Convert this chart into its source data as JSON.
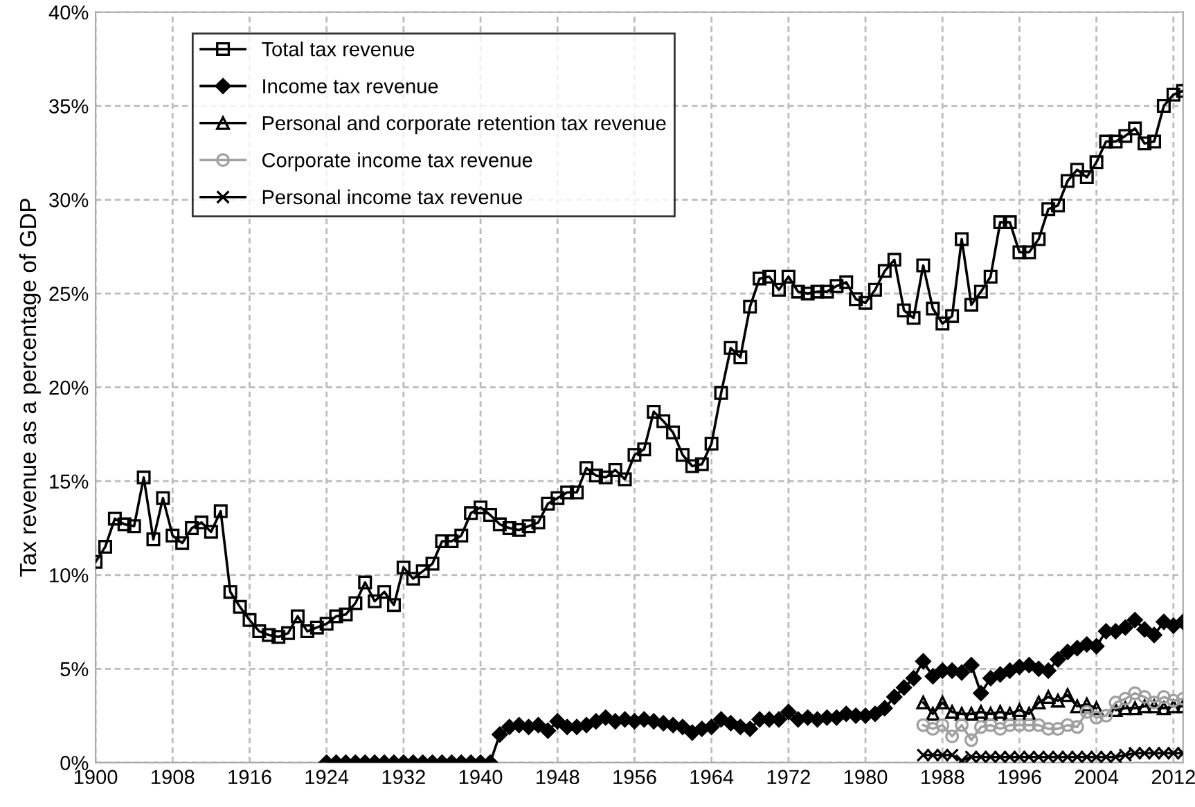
{
  "chart_data": {
    "type": "line",
    "ylabel": "Tax revenue as a percentage of GDP",
    "xlim": [
      1900,
      2013
    ],
    "xticks": [
      1900,
      1908,
      1916,
      1924,
      1932,
      1940,
      1948,
      1956,
      1964,
      1972,
      1980,
      1988,
      1996,
      2004,
      2012
    ],
    "ylim": [
      0,
      40
    ],
    "yticks": [
      {
        "value": 0,
        "label": "0%"
      },
      {
        "value": 5,
        "label": "5%"
      },
      {
        "value": 10,
        "label": "10%"
      },
      {
        "value": 15,
        "label": "15%"
      },
      {
        "value": 20,
        "label": "20%"
      },
      {
        "value": 25,
        "label": "25%"
      },
      {
        "value": 30,
        "label": "30%"
      },
      {
        "value": 35,
        "label": "35%"
      },
      {
        "value": 40,
        "label": "40%"
      }
    ],
    "grid": true,
    "legend": "top left",
    "line_style": "solid",
    "series": [
      {
        "name": "Total tax revenue",
        "color": "#000000",
        "marker": "square",
        "x": [
          1900,
          1901,
          1902,
          1903,
          1904,
          1905,
          1906,
          1907,
          1908,
          1909,
          1910,
          1911,
          1912,
          1913,
          1914,
          1915,
          1916,
          1917,
          1918,
          1919,
          1920,
          1921,
          1922,
          1923,
          1924,
          1925,
          1926,
          1927,
          1928,
          1929,
          1930,
          1931,
          1932,
          1933,
          1934,
          1935,
          1936,
          1937,
          1938,
          1939,
          1940,
          1941,
          1942,
          1943,
          1944,
          1945,
          1946,
          1947,
          1948,
          1949,
          1950,
          1951,
          1952,
          1953,
          1954,
          1955,
          1956,
          1957,
          1958,
          1959,
          1960,
          1961,
          1962,
          1963,
          1964,
          1965,
          1966,
          1967,
          1968,
          1969,
          1970,
          1971,
          1972,
          1973,
          1974,
          1975,
          1976,
          1977,
          1978,
          1979,
          1980,
          1981,
          1982,
          1983,
          1984,
          1985,
          1986,
          1987,
          1988,
          1989,
          1990,
          1991,
          1992,
          1993,
          1994,
          1995,
          1996,
          1997,
          1998,
          1999,
          2000,
          2001,
          2002,
          2003,
          2004,
          2005,
          2006,
          2007,
          2008,
          2009,
          2010,
          2011,
          2012,
          2013
        ],
        "values": [
          10.7,
          11.5,
          13.0,
          12.7,
          12.6,
          15.2,
          11.9,
          14.1,
          12.1,
          11.7,
          12.5,
          12.8,
          12.3,
          13.4,
          9.1,
          8.3,
          7.6,
          7.0,
          6.8,
          6.7,
          6.9,
          7.8,
          7.0,
          7.2,
          7.4,
          7.8,
          7.9,
          8.5,
          9.6,
          8.6,
          9.1,
          8.4,
          10.4,
          9.8,
          10.2,
          10.6,
          11.8,
          11.8,
          12.1,
          13.3,
          13.6,
          13.2,
          12.7,
          12.5,
          12.4,
          12.6,
          12.8,
          13.8,
          14.1,
          14.4,
          14.4,
          15.7,
          15.3,
          15.2,
          15.6,
          15.1,
          16.4,
          16.7,
          18.7,
          18.2,
          17.6,
          16.4,
          15.8,
          15.9,
          17.0,
          19.7,
          22.1,
          21.6,
          24.3,
          25.8,
          25.9,
          25.2,
          25.9,
          25.1,
          25.0,
          25.1,
          25.1,
          25.4,
          25.6,
          24.7,
          24.5,
          25.2,
          26.2,
          26.8,
          24.1,
          23.7,
          26.5,
          24.2,
          23.4,
          23.8,
          27.9,
          24.4,
          25.1,
          25.9,
          28.8,
          28.8,
          27.2,
          27.2,
          27.9,
          29.5,
          29.7,
          31.0,
          31.6,
          31.2,
          32.0,
          33.1,
          33.1,
          33.4,
          33.8,
          33.0,
          33.1,
          35.0,
          35.6,
          35.8
        ]
      },
      {
        "name": "Income tax revenue",
        "color": "#000000",
        "marker": "diamond",
        "x": [
          1924,
          1925,
          1926,
          1927,
          1928,
          1929,
          1930,
          1931,
          1932,
          1933,
          1934,
          1935,
          1936,
          1937,
          1938,
          1939,
          1940,
          1941,
          1942,
          1943,
          1944,
          1945,
          1946,
          1947,
          1948,
          1949,
          1950,
          1951,
          1952,
          1953,
          1954,
          1955,
          1956,
          1957,
          1958,
          1959,
          1960,
          1961,
          1962,
          1963,
          1964,
          1965,
          1966,
          1967,
          1968,
          1969,
          1970,
          1971,
          1972,
          1973,
          1974,
          1975,
          1976,
          1977,
          1978,
          1979,
          1980,
          1981,
          1982,
          1983,
          1984,
          1985,
          1986,
          1987,
          1988,
          1989,
          1990,
          1991,
          1992,
          1993,
          1994,
          1995,
          1996,
          1997,
          1998,
          1999,
          2000,
          2001,
          2002,
          2003,
          2004,
          2005,
          2006,
          2007,
          2008,
          2009,
          2010,
          2011,
          2012,
          2013
        ],
        "values": [
          0,
          0,
          0,
          0,
          0,
          0,
          0,
          0,
          0,
          0,
          0,
          0,
          0,
          0,
          0,
          0,
          0,
          0,
          1.5,
          1.9,
          2.0,
          1.9,
          2.0,
          1.7,
          2.2,
          1.9,
          1.9,
          2.0,
          2.2,
          2.4,
          2.2,
          2.3,
          2.2,
          2.3,
          2.2,
          2.1,
          2.0,
          1.9,
          1.6,
          1.8,
          1.9,
          2.3,
          2.1,
          1.9,
          1.8,
          2.3,
          2.3,
          2.3,
          2.7,
          2.3,
          2.4,
          2.3,
          2.4,
          2.4,
          2.6,
          2.5,
          2.5,
          2.6,
          2.9,
          3.5,
          4.0,
          4.5,
          5.4,
          4.6,
          4.9,
          4.9,
          4.8,
          5.2,
          3.7,
          4.5,
          4.7,
          4.9,
          5.1,
          5.2,
          5.0,
          4.9,
          5.5,
          5.9,
          6.1,
          6.3,
          6.2,
          7.0,
          7.0,
          7.2,
          7.6,
          7.1,
          6.8,
          7.5,
          7.3,
          7.5
        ]
      },
      {
        "name": "Personal and corporate retention tax revenue",
        "color": "#000000",
        "marker": "triangle",
        "x": [
          1986,
          1987,
          1988,
          1989,
          1990,
          1991,
          1992,
          1993,
          1994,
          1995,
          1996,
          1997,
          1998,
          1999,
          2000,
          2001,
          2002,
          2003,
          2004,
          2005,
          2006,
          2007,
          2008,
          2009,
          2010,
          2011,
          2012,
          2013
        ],
        "values": [
          3.2,
          2.6,
          3.2,
          2.7,
          2.6,
          2.6,
          2.7,
          2.6,
          2.7,
          2.6,
          2.8,
          2.6,
          3.2,
          3.5,
          3.3,
          3.6,
          3.0,
          3.1,
          2.9,
          null,
          2.8,
          2.9,
          2.9,
          3.0,
          3.0,
          2.9,
          3.0,
          3.0
        ]
      },
      {
        "name": "Corporate income tax revenue",
        "color": "#a0a0a0",
        "marker": "circle",
        "x": [
          1986,
          1987,
          1988,
          1989,
          1990,
          1991,
          1992,
          1993,
          1994,
          1995,
          1996,
          1997,
          1998,
          1999,
          2000,
          2001,
          2002,
          2003,
          2004,
          2005,
          2006,
          2007,
          2008,
          2009,
          2010,
          2011,
          2012,
          2013
        ],
        "values": [
          2.0,
          1.8,
          2.0,
          1.4,
          2.0,
          1.2,
          1.9,
          2.0,
          1.8,
          2.0,
          2.0,
          2.0,
          2.0,
          1.8,
          1.8,
          2.0,
          1.9,
          2.7,
          2.4,
          2.5,
          3.2,
          3.4,
          3.7,
          3.5,
          3.2,
          3.5,
          3.3,
          3.4
        ]
      },
      {
        "name": "Personal income tax revenue",
        "color": "#000000",
        "marker": "cross",
        "x": [
          1986,
          1987,
          1988,
          1989,
          1990,
          1991,
          1992,
          1993,
          1994,
          1995,
          1996,
          1997,
          1998,
          1999,
          2000,
          2001,
          2002,
          2003,
          2004,
          2005,
          2006,
          2007,
          2008,
          2009,
          2010,
          2011,
          2012,
          2013
        ],
        "values": [
          0.4,
          0.4,
          0.4,
          0.4,
          0.1,
          0.3,
          0.3,
          0.3,
          0.3,
          0.3,
          0.3,
          0.3,
          0.3,
          0.3,
          0.3,
          0.3,
          0.3,
          0.3,
          0.3,
          0.3,
          0.3,
          0.4,
          0.5,
          0.5,
          0.5,
          0.5,
          0.5,
          0.5
        ]
      }
    ]
  }
}
